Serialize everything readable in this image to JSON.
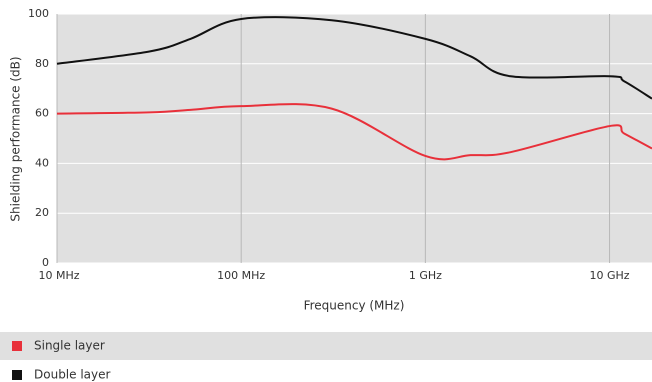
{
  "chart_data": {
    "type": "line",
    "x_label": "Frequency (MHz)",
    "y_label": "Shielding performance (dB)",
    "x": [
      10,
      32,
      53,
      100,
      310,
      1000,
      1760,
      2900,
      10000,
      12000,
      17000
    ],
    "xlog": true,
    "xlim": [
      10,
      17000
    ],
    "xticks": [
      {
        "value": 10,
        "label": "10 MHz"
      },
      {
        "value": 100,
        "label": "100 MHz"
      },
      {
        "value": 1000,
        "label": "1 GHz"
      },
      {
        "value": 10000,
        "label": "10 GHz"
      }
    ],
    "ylim": [
      0,
      100
    ],
    "yticks": [
      0,
      20,
      40,
      60,
      80,
      100
    ],
    "grid": true,
    "series": [
      {
        "name": "Single layer",
        "color": "#e8303a",
        "values": [
          60,
          60.5,
          61.5,
          63,
          62,
          43,
          43.3,
          44.5,
          55,
          52,
          46
        ]
      },
      {
        "name": "Double layer",
        "color": "#111111",
        "values": [
          80,
          85,
          90,
          98,
          97.5,
          90,
          83,
          75,
          75,
          73,
          66
        ]
      }
    ]
  }
}
